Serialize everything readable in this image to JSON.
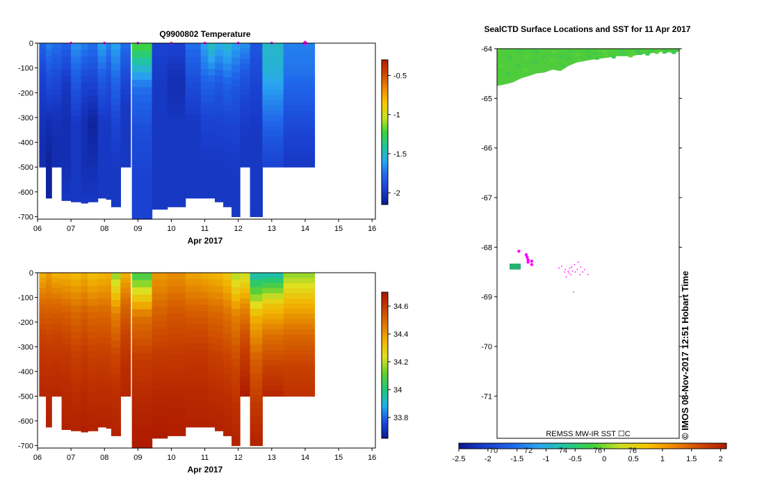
{
  "temperature_panel": {
    "title": "Q9900802  Temperature",
    "xlabel": "Apr 2017",
    "x_ticks": [
      "06",
      "07",
      "08",
      "09",
      "10",
      "11",
      "12",
      "13",
      "14",
      "15",
      "16"
    ],
    "y_ticks": [
      "0",
      "-100",
      "-200",
      "-300",
      "-400",
      "-500",
      "-600",
      "-700"
    ],
    "colorbar_ticks": [
      "-0.5",
      "-1",
      "-1.5",
      "-2"
    ]
  },
  "salinity_panel": {
    "xlabel": "Apr 2017",
    "x_ticks": [
      "06",
      "07",
      "08",
      "09",
      "10",
      "11",
      "12",
      "13",
      "14",
      "15",
      "16"
    ],
    "y_ticks": [
      "0",
      "-100",
      "-200",
      "-300",
      "-400",
      "-500",
      "-600",
      "-700"
    ],
    "colorbar_ticks": [
      "34.6",
      "34.4",
      "34.2",
      "34",
      "33.8"
    ]
  },
  "map_panel": {
    "title": "SealCTD Surface Locations and SST for 11 Apr 2017",
    "y_ticks": [
      "-64",
      "-65",
      "-66",
      "-67",
      "-68",
      "-69",
      "-70",
      "-71"
    ],
    "sst_label": "REMSS MW-IR SST ☐C",
    "credit": "©  IMOS 08-Nov-2017 12:51 Hobart Time",
    "colorbar_ticks": [
      "-2.5",
      "-2",
      "-1.5",
      "-1",
      "-0.5",
      "0",
      "0.5",
      "1",
      "1.5",
      "2"
    ],
    "lon_ticks": [
      "70",
      "72",
      "74",
      "76",
      "78"
    ]
  },
  "colors": {
    "temp_scale": [
      "#0a1a8c",
      "#1a3fd0",
      "#1f66ea",
      "#2aa6f0",
      "#20c89a",
      "#3ed23a",
      "#c8e020",
      "#f6c800",
      "#f08a00",
      "#d04a00",
      "#b21a00"
    ],
    "sal_scale": [
      "#0a1a8c",
      "#1a4be0",
      "#20b0e8",
      "#20c878",
      "#60d030",
      "#e0e020",
      "#f2b400",
      "#e07800",
      "#c84000",
      "#a81200"
    ],
    "track_marker": "#ff00ff"
  },
  "chart_data": [
    {
      "type": "heatmap",
      "title": "Q9900802  Temperature",
      "xlabel": "Apr 2017",
      "ylabel": "",
      "xlim": [
        6,
        16.1
      ],
      "ylim": [
        -710,
        0
      ],
      "colorbar_range": [
        -2.15,
        -0.3
      ],
      "profile_markers_day": [
        7,
        8,
        9,
        10,
        11,
        12,
        13,
        14
      ],
      "profiles": [
        {
          "start": 6.05,
          "end": 6.25,
          "max_depth": 500,
          "values": [
            -1.8,
            -1.95,
            -2.0,
            -2.05,
            -2.05
          ]
        },
        {
          "start": 6.25,
          "end": 6.42,
          "max_depth": 625,
          "values": [
            -1.7,
            -1.9,
            -2.05,
            -2.1,
            -2.1
          ]
        },
        {
          "start": 6.42,
          "end": 6.72,
          "max_depth": 500,
          "values": [
            -1.75,
            -1.9,
            -2.0,
            -2.05,
            -2.05
          ]
        },
        {
          "start": 6.72,
          "end": 7.0,
          "max_depth": 635,
          "values": [
            -1.8,
            -2.0,
            -2.05,
            -2.05,
            -2.0
          ]
        },
        {
          "start": 7.0,
          "end": 7.3,
          "max_depth": 640,
          "values": [
            -1.65,
            -1.85,
            -2.0,
            -2.0,
            -2.0
          ]
        },
        {
          "start": 7.3,
          "end": 7.5,
          "max_depth": 645,
          "values": [
            -1.7,
            -1.95,
            -2.05,
            -2.05,
            -2.0
          ]
        },
        {
          "start": 7.5,
          "end": 7.8,
          "max_depth": 640,
          "values": [
            -1.75,
            -1.95,
            -2.1,
            -2.05,
            -2.0
          ]
        },
        {
          "start": 7.8,
          "end": 8.05,
          "max_depth": 625,
          "values": [
            -1.6,
            -1.85,
            -2.0,
            -2.0,
            -2.0
          ]
        },
        {
          "start": 8.05,
          "end": 8.2,
          "max_depth": 630,
          "values": [
            -1.7,
            -1.9,
            -2.0,
            -2.0,
            -2.0
          ]
        },
        {
          "start": 8.2,
          "end": 8.48,
          "max_depth": 660,
          "values": [
            -1.6,
            -1.8,
            -1.95,
            -2.0,
            -2.0
          ]
        },
        {
          "start": 8.48,
          "end": 8.78,
          "max_depth": 500,
          "values": [
            -1.75,
            -1.9,
            -2.0,
            -2.0,
            -2.0
          ]
        },
        {
          "start": 8.82,
          "end": 9.42,
          "max_depth": 710,
          "values": [
            -1.2,
            -1.75,
            -1.9,
            -1.95,
            -1.95
          ]
        },
        {
          "start": 9.42,
          "end": 9.88,
          "max_depth": 670,
          "values": [
            -1.95,
            -2.0,
            -2.0,
            -2.0,
            -2.0
          ]
        },
        {
          "start": 9.88,
          "end": 10.42,
          "max_depth": 660,
          "values": [
            -1.95,
            -2.05,
            -2.0,
            -2.0,
            -2.0
          ]
        },
        {
          "start": 10.42,
          "end": 10.88,
          "max_depth": 625,
          "values": [
            -1.75,
            -1.9,
            -2.0,
            -2.0,
            -2.0
          ]
        },
        {
          "start": 10.88,
          "end": 11.1,
          "max_depth": 625,
          "values": [
            -1.6,
            -1.8,
            -1.95,
            -2.0,
            -2.0
          ]
        },
        {
          "start": 11.1,
          "end": 11.3,
          "max_depth": 625,
          "values": [
            -1.45,
            -1.8,
            -1.95,
            -2.0,
            -2.0
          ]
        },
        {
          "start": 11.3,
          "end": 11.55,
          "max_depth": 640,
          "values": [
            -1.55,
            -1.85,
            -1.95,
            -2.0,
            -2.0
          ]
        },
        {
          "start": 11.55,
          "end": 11.8,
          "max_depth": 660,
          "values": [
            -1.5,
            -1.8,
            -1.95,
            -2.0,
            -2.0
          ]
        },
        {
          "start": 11.8,
          "end": 12.05,
          "max_depth": 700,
          "values": [
            -1.6,
            -1.85,
            -1.95,
            -2.0,
            -2.0
          ]
        },
        {
          "start": 12.05,
          "end": 12.35,
          "max_depth": 500,
          "values": [
            -1.65,
            -1.85,
            -1.95,
            -2.0,
            -2.0
          ]
        },
        {
          "start": 12.35,
          "end": 12.72,
          "max_depth": 700,
          "values": [
            -1.85,
            -1.95,
            -2.0,
            -2.0,
            -2.0
          ]
        },
        {
          "start": 12.72,
          "end": 13.35,
          "max_depth": 500,
          "values": [
            -1.5,
            -1.55,
            -1.7,
            -1.85,
            -1.95
          ]
        },
        {
          "start": 13.35,
          "end": 14.28,
          "max_depth": 500,
          "values": [
            -1.7,
            -1.75,
            -1.85,
            -1.95,
            -2.0
          ]
        }
      ]
    },
    {
      "type": "heatmap",
      "title": "",
      "xlabel": "Apr 2017",
      "ylabel": "",
      "xlim": [
        6,
        16.1
      ],
      "ylim": [
        -710,
        0
      ],
      "colorbar_range": [
        33.65,
        34.7
      ],
      "profiles": [
        {
          "start": 6.05,
          "end": 6.25,
          "max_depth": 500,
          "values": [
            34.35,
            34.5,
            34.58,
            34.62,
            34.65
          ]
        },
        {
          "start": 6.25,
          "end": 6.42,
          "max_depth": 625,
          "values": [
            34.4,
            34.52,
            34.6,
            34.64,
            34.66
          ]
        },
        {
          "start": 6.42,
          "end": 6.72,
          "max_depth": 500,
          "values": [
            34.35,
            34.5,
            34.58,
            34.62,
            34.65
          ]
        },
        {
          "start": 6.72,
          "end": 7.0,
          "max_depth": 635,
          "values": [
            34.35,
            34.52,
            34.6,
            34.64,
            34.66
          ]
        },
        {
          "start": 7.0,
          "end": 7.3,
          "max_depth": 640,
          "values": [
            34.33,
            34.5,
            34.58,
            34.63,
            34.66
          ]
        },
        {
          "start": 7.3,
          "end": 7.5,
          "max_depth": 645,
          "values": [
            34.36,
            34.52,
            34.6,
            34.64,
            34.67
          ]
        },
        {
          "start": 7.5,
          "end": 7.8,
          "max_depth": 640,
          "values": [
            34.32,
            34.5,
            34.58,
            34.63,
            34.66
          ]
        },
        {
          "start": 7.8,
          "end": 8.05,
          "max_depth": 625,
          "values": [
            34.34,
            34.5,
            34.58,
            34.63,
            34.66
          ]
        },
        {
          "start": 8.05,
          "end": 8.2,
          "max_depth": 630,
          "values": [
            34.35,
            34.5,
            34.58,
            34.63,
            34.66
          ]
        },
        {
          "start": 8.2,
          "end": 8.48,
          "max_depth": 660,
          "values": [
            34.15,
            34.45,
            34.57,
            34.63,
            34.66
          ]
        },
        {
          "start": 8.48,
          "end": 8.78,
          "max_depth": 500,
          "values": [
            34.35,
            34.5,
            34.58,
            34.63,
            34.65
          ]
        },
        {
          "start": 8.82,
          "end": 9.42,
          "max_depth": 710,
          "values": [
            34.05,
            34.48,
            34.6,
            34.65,
            34.68
          ]
        },
        {
          "start": 9.42,
          "end": 9.88,
          "max_depth": 670,
          "values": [
            34.4,
            34.52,
            34.6,
            34.65,
            34.68
          ]
        },
        {
          "start": 9.88,
          "end": 10.42,
          "max_depth": 660,
          "values": [
            34.42,
            34.54,
            34.6,
            34.65,
            34.67
          ]
        },
        {
          "start": 10.42,
          "end": 10.88,
          "max_depth": 625,
          "values": [
            34.38,
            34.52,
            34.6,
            34.64,
            34.66
          ]
        },
        {
          "start": 10.88,
          "end": 11.1,
          "max_depth": 625,
          "values": [
            34.36,
            34.52,
            34.6,
            34.64,
            34.66
          ]
        },
        {
          "start": 11.1,
          "end": 11.3,
          "max_depth": 625,
          "values": [
            34.35,
            34.5,
            34.58,
            34.63,
            34.66
          ]
        },
        {
          "start": 11.3,
          "end": 11.55,
          "max_depth": 640,
          "values": [
            34.34,
            34.5,
            34.58,
            34.63,
            34.66
          ]
        },
        {
          "start": 11.55,
          "end": 11.8,
          "max_depth": 660,
          "values": [
            34.3,
            34.48,
            34.57,
            34.63,
            34.66
          ]
        },
        {
          "start": 11.8,
          "end": 12.05,
          "max_depth": 700,
          "values": [
            34.18,
            34.45,
            34.56,
            34.62,
            34.66
          ]
        },
        {
          "start": 12.05,
          "end": 12.35,
          "max_depth": 500,
          "values": [
            34.2,
            34.42,
            34.55,
            34.62,
            34.68
          ]
        },
        {
          "start": 12.35,
          "end": 12.72,
          "max_depth": 700,
          "values": [
            33.92,
            34.35,
            34.52,
            34.6,
            34.66
          ]
        },
        {
          "start": 12.72,
          "end": 13.35,
          "max_depth": 500,
          "values": [
            33.92,
            34.3,
            34.48,
            34.58,
            34.65
          ]
        },
        {
          "start": 13.35,
          "end": 14.28,
          "max_depth": 500,
          "values": [
            34.15,
            34.35,
            34.5,
            34.58,
            34.62
          ]
        }
      ]
    },
    {
      "type": "scatter",
      "title": "SealCTD Surface Locations and SST for 11 Apr 2017",
      "ylabel": "",
      "ylim": [
        -71.85,
        -64
      ],
      "colorbar_range": [
        -2.5,
        2.1
      ],
      "sst_ice_edge": [
        -64.75,
        -64.72,
        -64.68,
        -64.6,
        -64.55,
        -64.5,
        -64.48,
        -64.42,
        -64.45,
        -64.35,
        -64.28,
        -64.25,
        -64.22,
        -64.2,
        -64.18,
        -64.15,
        -64.15,
        -64.15,
        -64.12,
        -64.1,
        -64.08,
        -64.05,
        -64.08,
        -64.05
      ],
      "sst_patch": {
        "lat_min": -68.45,
        "lat_max": -68.33
      },
      "seal_locations": [
        {
          "u": 0.12,
          "lat": -68.08
        },
        {
          "u": 0.16,
          "lat": -68.15
        },
        {
          "u": 0.165,
          "lat": -68.2
        },
        {
          "u": 0.17,
          "lat": -68.25
        },
        {
          "u": 0.17,
          "lat": -68.3
        },
        {
          "u": 0.19,
          "lat": -68.28
        },
        {
          "u": 0.19,
          "lat": -68.35
        },
        {
          "u": 0.34,
          "lat": -68.42
        },
        {
          "u": 0.355,
          "lat": -68.38
        },
        {
          "u": 0.37,
          "lat": -68.5
        },
        {
          "u": 0.375,
          "lat": -68.45
        },
        {
          "u": 0.38,
          "lat": -68.6
        },
        {
          "u": 0.39,
          "lat": -68.48
        },
        {
          "u": 0.395,
          "lat": -68.52
        },
        {
          "u": 0.4,
          "lat": -68.42
        },
        {
          "u": 0.405,
          "lat": -68.55
        },
        {
          "u": 0.41,
          "lat": -68.4
        },
        {
          "u": 0.415,
          "lat": -68.48
        },
        {
          "u": 0.42,
          "lat": -68.9
        },
        {
          "u": 0.425,
          "lat": -68.35
        },
        {
          "u": 0.43,
          "lat": -68.5
        },
        {
          "u": 0.44,
          "lat": -68.45
        },
        {
          "u": 0.445,
          "lat": -68.3
        },
        {
          "u": 0.455,
          "lat": -68.55
        },
        {
          "u": 0.46,
          "lat": -68.4
        },
        {
          "u": 0.47,
          "lat": -68.5
        },
        {
          "u": 0.48,
          "lat": -68.45
        },
        {
          "u": 0.5,
          "lat": -68.55
        }
      ]
    }
  ]
}
